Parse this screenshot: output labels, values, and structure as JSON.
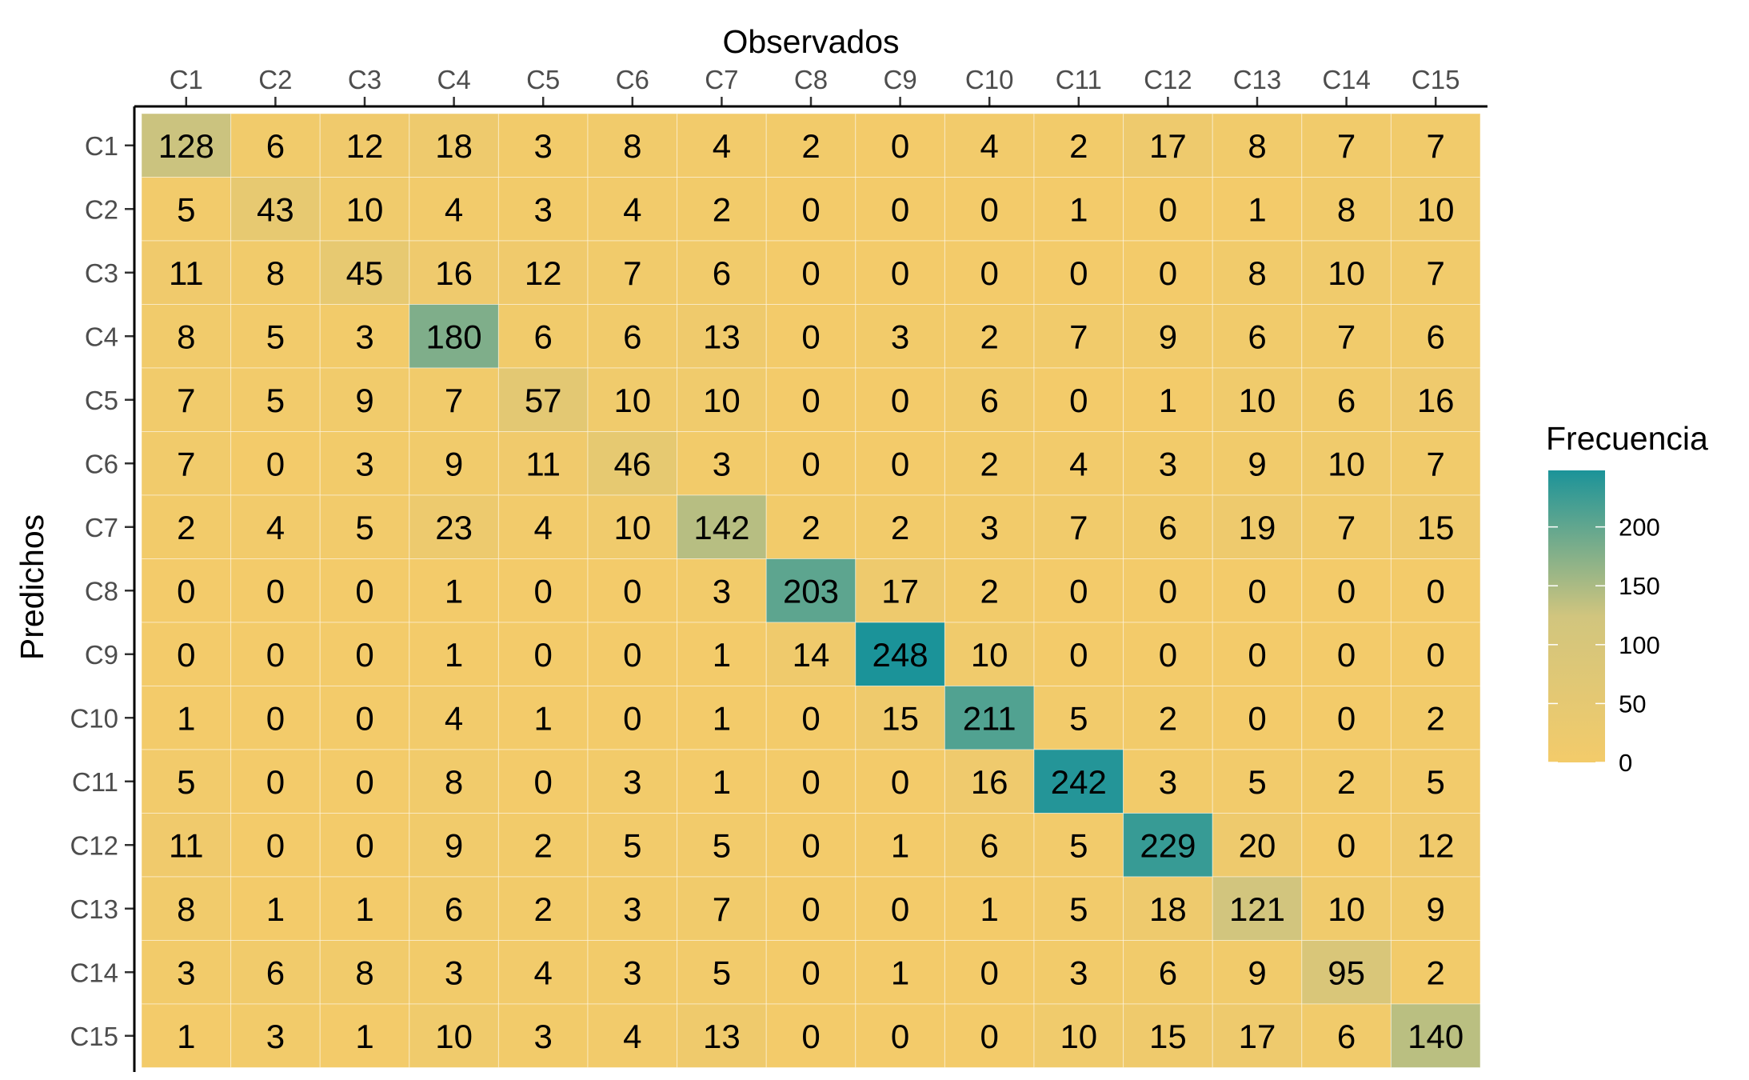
{
  "chart_data": {
    "type": "heatmap",
    "xlabel": "Observados",
    "ylabel": "Predichos",
    "x_categories": [
      "C1",
      "C2",
      "C3",
      "C4",
      "C5",
      "C6",
      "C7",
      "C8",
      "C9",
      "C10",
      "C11",
      "C12",
      "C13",
      "C14",
      "C15"
    ],
    "y_categories": [
      "C1",
      "C2",
      "C3",
      "C4",
      "C5",
      "C6",
      "C7",
      "C8",
      "C9",
      "C10",
      "C11",
      "C12",
      "C13",
      "C14",
      "C15"
    ],
    "x_axis_position": "top",
    "values": [
      [
        128,
        6,
        12,
        18,
        3,
        8,
        4,
        2,
        0,
        4,
        2,
        17,
        8,
        7,
        7
      ],
      [
        5,
        43,
        10,
        4,
        3,
        4,
        2,
        0,
        0,
        0,
        1,
        0,
        1,
        8,
        10
      ],
      [
        11,
        8,
        45,
        16,
        12,
        7,
        6,
        0,
        0,
        0,
        0,
        0,
        8,
        10,
        7
      ],
      [
        8,
        5,
        3,
        180,
        6,
        6,
        13,
        0,
        3,
        2,
        7,
        9,
        6,
        7,
        6
      ],
      [
        7,
        5,
        9,
        7,
        57,
        10,
        10,
        0,
        0,
        6,
        0,
        1,
        10,
        6,
        16
      ],
      [
        7,
        0,
        3,
        9,
        11,
        46,
        3,
        0,
        0,
        2,
        4,
        3,
        9,
        10,
        7
      ],
      [
        2,
        4,
        5,
        23,
        4,
        10,
        142,
        2,
        2,
        3,
        7,
        6,
        19,
        7,
        15
      ],
      [
        0,
        0,
        0,
        1,
        0,
        0,
        3,
        203,
        17,
        2,
        0,
        0,
        0,
        0,
        0
      ],
      [
        0,
        0,
        0,
        1,
        0,
        0,
        1,
        14,
        248,
        10,
        0,
        0,
        0,
        0,
        0
      ],
      [
        1,
        0,
        0,
        4,
        1,
        0,
        1,
        0,
        15,
        211,
        5,
        2,
        0,
        0,
        2
      ],
      [
        5,
        0,
        0,
        8,
        0,
        3,
        1,
        0,
        0,
        16,
        242,
        3,
        5,
        2,
        5
      ],
      [
        11,
        0,
        0,
        9,
        2,
        5,
        5,
        0,
        1,
        6,
        5,
        229,
        20,
        0,
        12
      ],
      [
        8,
        1,
        1,
        6,
        2,
        3,
        7,
        0,
        0,
        1,
        5,
        18,
        121,
        10,
        9
      ],
      [
        3,
        6,
        8,
        3,
        4,
        3,
        5,
        0,
        1,
        0,
        3,
        6,
        9,
        95,
        2
      ],
      [
        1,
        3,
        1,
        10,
        3,
        4,
        13,
        0,
        0,
        0,
        10,
        15,
        17,
        6,
        140
      ]
    ],
    "legend": {
      "title": "Frecuencia",
      "position": "right",
      "ticks": [
        0,
        50,
        100,
        150,
        200
      ],
      "range": [
        0,
        248
      ]
    },
    "color_scale": {
      "low": "#F3CB6A",
      "mid": "#D1C57E",
      "high": "#1B9399"
    },
    "grid": false
  }
}
